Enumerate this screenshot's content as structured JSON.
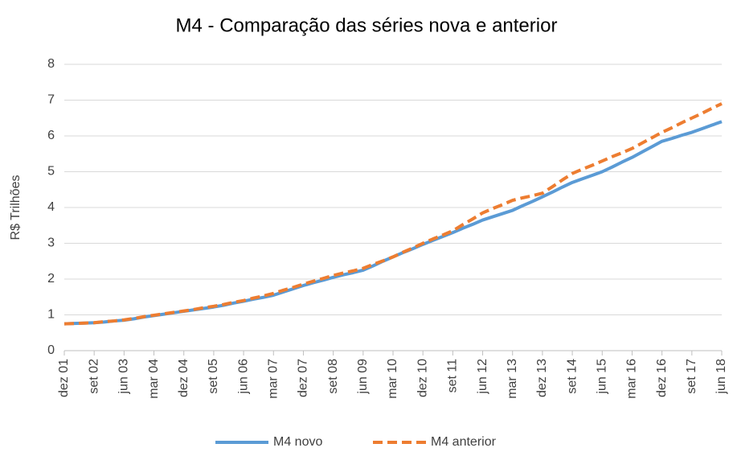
{
  "chart_data": {
    "type": "line",
    "title": "M4 - Comparação das séries nova e anterior",
    "y_label": "R$ Trilhões",
    "categories": [
      "dez 01",
      null,
      null,
      "set 02",
      null,
      null,
      "jun 03",
      null,
      null,
      "mar 04",
      null,
      null,
      "dez 04",
      null,
      null,
      "set 05",
      null,
      null,
      "jun 06",
      null,
      null,
      "mar 07",
      null,
      null,
      "dez 07",
      null,
      null,
      "set 08",
      null,
      null,
      "jun 09",
      null,
      null,
      "mar 10",
      null,
      null,
      "dez 10",
      null,
      null,
      "set 11",
      null,
      null,
      "jun 12",
      null,
      null,
      "mar 13",
      null,
      null,
      "dez 13",
      null,
      null,
      "set 14",
      null,
      null,
      "jun 15",
      null,
      null,
      "mar 16",
      null,
      null,
      "dez 16",
      null,
      null,
      "set 17",
      null,
      null,
      "jun 18"
    ],
    "series": [
      {
        "name": "M4 novo",
        "color": "#5b9bd5",
        "dashed": false,
        "values": [
          0.75,
          0.76,
          0.77,
          0.78,
          0.8,
          0.83,
          0.85,
          0.89,
          0.94,
          0.98,
          1.02,
          1.06,
          1.1,
          1.14,
          1.18,
          1.22,
          1.27,
          1.33,
          1.38,
          1.44,
          1.49,
          1.55,
          1.64,
          1.73,
          1.82,
          1.9,
          1.97,
          2.05,
          2.12,
          2.18,
          2.25,
          2.37,
          2.5,
          2.62,
          2.74,
          2.85,
          2.97,
          3.08,
          3.19,
          3.3,
          3.42,
          3.53,
          3.65,
          3.74,
          3.83,
          3.92,
          4.05,
          4.17,
          4.3,
          4.43,
          4.57,
          4.7,
          4.8,
          4.9,
          5.0,
          5.13,
          5.27,
          5.4,
          5.55,
          5.7,
          5.85,
          5.93,
          6.02,
          6.1,
          6.2,
          6.3,
          6.4
        ]
      },
      {
        "name": "M4 anterior",
        "color": "#ed7d31",
        "dashed": true,
        "values": [
          0.75,
          0.76,
          0.77,
          0.78,
          0.81,
          0.83,
          0.86,
          0.9,
          0.95,
          0.99,
          1.03,
          1.07,
          1.11,
          1.15,
          1.2,
          1.24,
          1.29,
          1.35,
          1.4,
          1.47,
          1.53,
          1.6,
          1.69,
          1.77,
          1.86,
          1.94,
          2.02,
          2.1,
          2.17,
          2.23,
          2.3,
          2.41,
          2.51,
          2.62,
          2.75,
          2.87,
          3.0,
          3.12,
          3.23,
          3.35,
          3.52,
          3.68,
          3.85,
          3.97,
          4.08,
          4.2,
          4.27,
          4.33,
          4.4,
          4.58,
          4.77,
          4.95,
          5.07,
          5.18,
          5.3,
          5.42,
          5.53,
          5.65,
          5.8,
          5.95,
          6.1,
          6.23,
          6.37,
          6.5,
          6.63,
          6.77,
          6.9
        ]
      }
    ],
    "ylim": [
      0,
      8
    ],
    "yticks": [
      0,
      1,
      2,
      3,
      4,
      5,
      6,
      7,
      8
    ],
    "grid": true,
    "legend": "bottom"
  }
}
